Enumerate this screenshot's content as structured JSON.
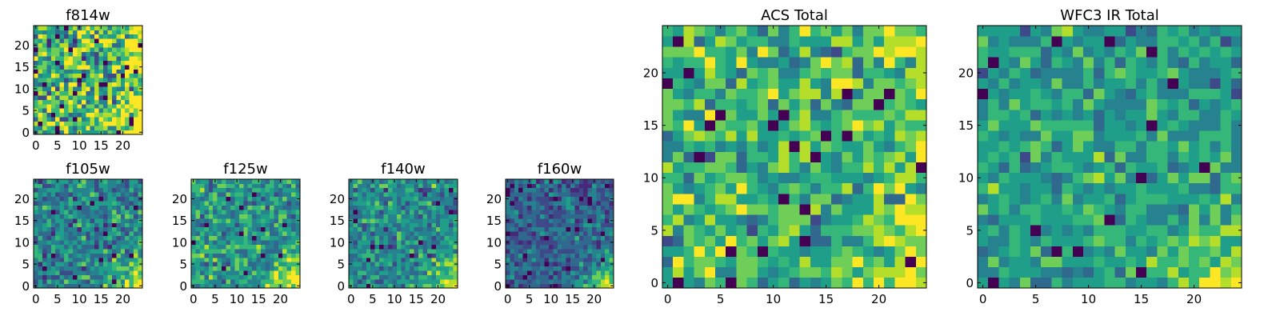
{
  "colormap": [
    "#440154",
    "#482878",
    "#3e4989",
    "#31688e",
    "#26828e",
    "#1f9e89",
    "#35b779",
    "#6ece58",
    "#b5de2b",
    "#fde725"
  ],
  "chart_data": [
    {
      "type": "heatmap",
      "id": "f814w",
      "title": "f814w",
      "size": 25,
      "xticks": [
        0,
        5,
        10,
        15,
        20
      ],
      "yticks": [
        0,
        5,
        10,
        15,
        20
      ],
      "level_range": [
        0,
        9
      ],
      "mean_level": 6.0,
      "spread": 2.2,
      "seed": 11,
      "low_rate": 0.05,
      "corner_boost": {
        "x": "high",
        "y": "low",
        "strength": 3.5
      },
      "edge_boost": {
        "side": "right",
        "strength": 2.5
      }
    },
    {
      "type": "heatmap",
      "id": "f105w",
      "title": "f105w",
      "size": 25,
      "xticks": [
        0,
        5,
        10,
        15,
        20
      ],
      "yticks": [
        0,
        5,
        10,
        15,
        20
      ],
      "level_range": [
        0,
        9
      ],
      "mean_level": 4.0,
      "spread": 1.3,
      "seed": 23,
      "low_rate": 0.02,
      "corner_boost": {
        "x": "high",
        "y": "low",
        "strength": 5.5
      },
      "edge_boost": null
    },
    {
      "type": "heatmap",
      "id": "f125w",
      "title": "f125w",
      "size": 25,
      "xticks": [
        0,
        5,
        10,
        15,
        20
      ],
      "yticks": [
        0,
        5,
        10,
        15,
        20
      ],
      "level_range": [
        0,
        9
      ],
      "mean_level": 4.8,
      "spread": 1.3,
      "seed": 37,
      "low_rate": 0.02,
      "corner_boost": {
        "x": "high",
        "y": "low",
        "strength": 5.0
      },
      "edge_boost": null
    },
    {
      "type": "heatmap",
      "id": "f140w",
      "title": "f140w",
      "size": 25,
      "xticks": [
        0,
        5,
        10,
        15,
        20
      ],
      "yticks": [
        0,
        5,
        10,
        15,
        20
      ],
      "level_range": [
        0,
        9
      ],
      "mean_level": 4.2,
      "spread": 1.2,
      "seed": 41,
      "low_rate": 0.015,
      "corner_boost": {
        "x": "high",
        "y": "low",
        "strength": 5.5
      },
      "edge_boost": null
    },
    {
      "type": "heatmap",
      "id": "f160w",
      "title": "f160w",
      "size": 25,
      "xticks": [
        0,
        5,
        10,
        15,
        20
      ],
      "yticks": [
        0,
        5,
        10,
        15,
        20
      ],
      "level_range": [
        0,
        9
      ],
      "mean_level": 2.8,
      "spread": 1.1,
      "seed": 53,
      "low_rate": 0.02,
      "corner_boost": {
        "x": "high",
        "y": "low",
        "strength": 6.5
      },
      "edge_boost": null
    },
    {
      "type": "heatmap",
      "id": "acs-total",
      "title": "ACS Total",
      "size": 25,
      "xticks": [
        0,
        5,
        10,
        15,
        20
      ],
      "yticks": [
        0,
        5,
        10,
        15,
        20
      ],
      "level_range": [
        0,
        9
      ],
      "mean_level": 6.0,
      "spread": 1.6,
      "seed": 67,
      "low_rate": 0.035,
      "corner_boost": {
        "x": "high",
        "y": "low",
        "strength": 2.5
      },
      "edge_boost": {
        "side": "right",
        "strength": 1.5
      }
    },
    {
      "type": "heatmap",
      "id": "wfc3-ir-total",
      "title": "WFC3 IR Total",
      "size": 25,
      "xticks": [
        0,
        5,
        10,
        15,
        20
      ],
      "yticks": [
        0,
        5,
        10,
        15,
        20
      ],
      "level_range": [
        0,
        9
      ],
      "mean_level": 5.0,
      "spread": 1.1,
      "seed": 79,
      "low_rate": 0.03,
      "corner_boost": {
        "x": "high",
        "y": "low",
        "strength": 4.0
      },
      "edge_boost": null
    }
  ]
}
